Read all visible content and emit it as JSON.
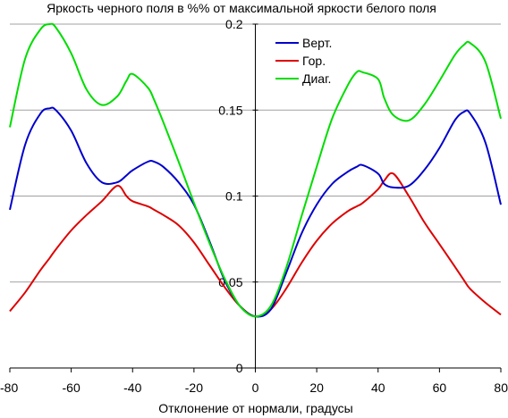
{
  "chart_data": {
    "type": "line",
    "title": "Яркость черного поля в %% от максимальной яркости белого поля",
    "xlabel": "Отклонение от нормали, градусы",
    "ylabel": "",
    "xlim": [
      -80,
      80
    ],
    "ylim": [
      0,
      0.2
    ],
    "xticks": [
      "-80",
      "-60",
      "-40",
      "-20",
      "0",
      "20",
      "40",
      "60",
      "80"
    ],
    "yticks": [
      "0",
      "0.05",
      "0.1",
      "0.15",
      "0.2"
    ],
    "grid": "horizontal",
    "legend_position": "top-right",
    "x": [
      -80,
      -75,
      -70,
      -67,
      -65,
      -60,
      -55,
      -50,
      -45,
      -42,
      -40,
      -35,
      -33,
      -30,
      -25,
      -20,
      -15,
      -10,
      -5,
      0,
      5,
      10,
      15,
      20,
      25,
      30,
      33,
      35,
      40,
      42,
      45,
      50,
      55,
      60,
      65,
      68,
      70,
      75,
      80
    ],
    "series": [
      {
        "name": "Верт.",
        "color": "#0000cc",
        "values": [
          0.092,
          0.13,
          0.148,
          0.151,
          0.15,
          0.138,
          0.119,
          0.108,
          0.108,
          0.112,
          0.115,
          0.12,
          0.12,
          0.117,
          0.108,
          0.095,
          0.074,
          0.051,
          0.036,
          0.03,
          0.034,
          0.055,
          0.078,
          0.095,
          0.107,
          0.114,
          0.117,
          0.118,
          0.113,
          0.107,
          0.105,
          0.106,
          0.115,
          0.128,
          0.144,
          0.149,
          0.148,
          0.131,
          0.095
        ]
      },
      {
        "name": "Гор.",
        "color": "#dd0000",
        "values": [
          0.033,
          0.044,
          0.057,
          0.064,
          0.069,
          0.08,
          0.089,
          0.097,
          0.106,
          0.1,
          0.097,
          0.094,
          0.092,
          0.089,
          0.083,
          0.073,
          0.06,
          0.047,
          0.036,
          0.03,
          0.034,
          0.046,
          0.061,
          0.074,
          0.084,
          0.091,
          0.094,
          0.096,
          0.104,
          0.109,
          0.113,
          0.1,
          0.085,
          0.072,
          0.059,
          0.051,
          0.046,
          0.038,
          0.031
        ]
      },
      {
        "name": "Диаг.",
        "color": "#00dd00",
        "values": [
          0.14,
          0.18,
          0.197,
          0.2,
          0.198,
          0.183,
          0.162,
          0.153,
          0.158,
          0.167,
          0.171,
          0.163,
          0.156,
          0.143,
          0.12,
          0.096,
          0.073,
          0.052,
          0.036,
          0.03,
          0.036,
          0.058,
          0.088,
          0.117,
          0.145,
          0.164,
          0.172,
          0.172,
          0.168,
          0.157,
          0.147,
          0.144,
          0.153,
          0.167,
          0.182,
          0.188,
          0.189,
          0.178,
          0.145
        ]
      }
    ]
  }
}
